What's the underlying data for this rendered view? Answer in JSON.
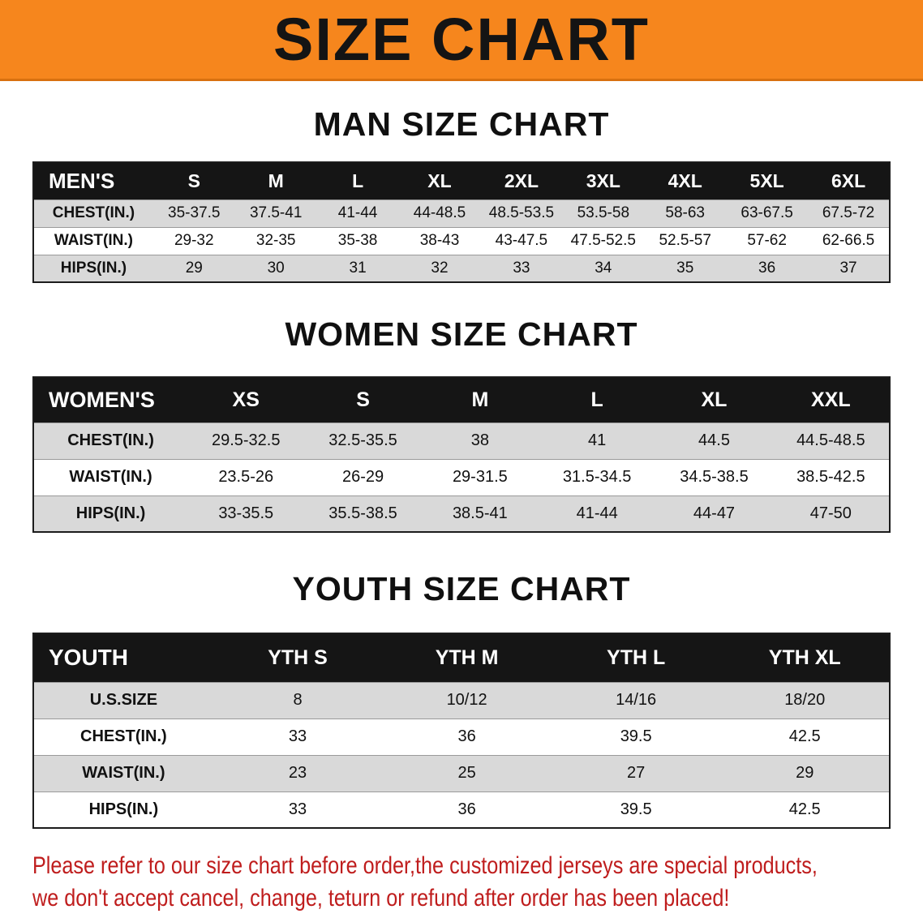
{
  "banner": {
    "title": "SIZE CHART"
  },
  "sections": [
    {
      "heading": "MAN SIZE CHART",
      "table": {
        "header": [
          "MEN'S",
          "S",
          "M",
          "L",
          "XL",
          "2XL",
          "3XL",
          "4XL",
          "5XL",
          "6XL"
        ],
        "rows": [
          [
            "CHEST(IN.)",
            "35-37.5",
            "37.5-41",
            "41-44",
            "44-48.5",
            "48.5-53.5",
            "53.5-58",
            "58-63",
            "63-67.5",
            "67.5-72"
          ],
          [
            "WAIST(IN.)",
            "29-32",
            "32-35",
            "35-38",
            "38-43",
            "43-47.5",
            "47.5-52.5",
            "52.5-57",
            "57-62",
            "62-66.5"
          ],
          [
            "HIPS(IN.)",
            "29",
            "30",
            "31",
            "32",
            "33",
            "34",
            "35",
            "36",
            "37"
          ]
        ]
      }
    },
    {
      "heading": "WOMEN SIZE CHART",
      "table": {
        "header": [
          "WOMEN'S",
          "XS",
          "S",
          "M",
          "L",
          "XL",
          "XXL"
        ],
        "rows": [
          [
            "CHEST(IN.)",
            "29.5-32.5",
            "32.5-35.5",
            "38",
            "41",
            "44.5",
            "44.5-48.5"
          ],
          [
            "WAIST(IN.)",
            "23.5-26",
            "26-29",
            "29-31.5",
            "31.5-34.5",
            "34.5-38.5",
            "38.5-42.5"
          ],
          [
            "HIPS(IN.)",
            "33-35.5",
            "35.5-38.5",
            "38.5-41",
            "41-44",
            "44-47",
            "47-50"
          ]
        ]
      }
    },
    {
      "heading": "YOUTH SIZE CHART",
      "table": {
        "header": [
          "YOUTH",
          "YTH S",
          "YTH M",
          "YTH L",
          "YTH XL"
        ],
        "rows": [
          [
            "U.S.SIZE",
            "8",
            "10/12",
            "14/16",
            "18/20"
          ],
          [
            "CHEST(IN.)",
            "33",
            "36",
            "39.5",
            "42.5"
          ],
          [
            "WAIST(IN.)",
            "23",
            "25",
            "27",
            "29"
          ],
          [
            "HIPS(IN.)",
            "33",
            "36",
            "39.5",
            "42.5"
          ]
        ]
      }
    }
  ],
  "disclaimer": {
    "line1": "Please refer to our size chart before order,the customized jerseys are special products,",
    "line2": "we don't accept cancel, change, teturn or refund after order has been placed!"
  },
  "colors": {
    "banner_bg": "#f6861d",
    "header_bg": "#151515",
    "row_alt_bg": "#d9d9d9",
    "disclaimer_color": "#bf1d1d"
  }
}
